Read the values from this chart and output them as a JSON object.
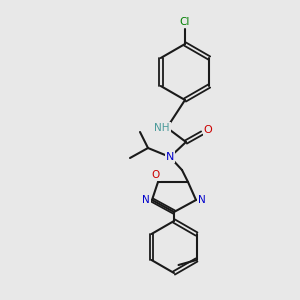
{
  "background_color": "#e8e8e8",
  "bond_color": "#1a1a1a",
  "atom_colors": {
    "N": "#0000cc",
    "O": "#cc0000",
    "Cl": "#008000",
    "H": "#4a9a9a",
    "C": "#1a1a1a"
  },
  "figsize": [
    3.0,
    3.0
  ],
  "dpi": 100
}
